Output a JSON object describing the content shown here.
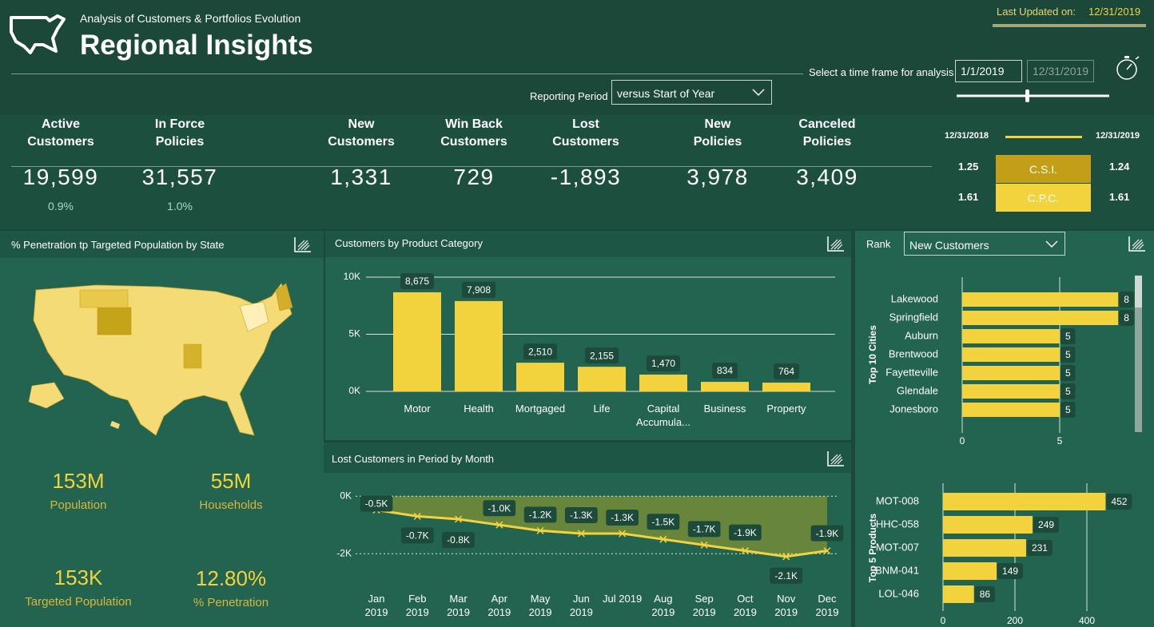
{
  "header": {
    "subtitle": "Analysis of Customers & Portfolios Evolution",
    "title": "Regional Insights",
    "last_updated_label": "Last Updated on:",
    "last_updated": "12/31/2019",
    "reporting_label": "Reporting Period",
    "reporting_period": "versus Start of Year",
    "timeframe_label": "Select a time frame for analysis",
    "start_date": "1/1/2019",
    "end_date": "12/31/2019"
  },
  "kpis": [
    {
      "label": "Active Customers",
      "value": "19,599",
      "change": "0.9%"
    },
    {
      "label": "In Force Policies",
      "value": "31,557",
      "change": "1.0%"
    },
    {
      "label": "New Customers",
      "value": "1,331"
    },
    {
      "label": "Win Back Customers",
      "value": "729"
    },
    {
      "label": "Lost Customers",
      "value": "-1,893"
    },
    {
      "label": "New Policies",
      "value": "3,978"
    },
    {
      "label": "Canceled Policies",
      "value": "3,409"
    }
  ],
  "indices": {
    "start_date": "12/31/2018",
    "end_date": "12/31/2019",
    "rows": [
      {
        "name": "C.S.I.",
        "start": "1.25",
        "end": "1.24"
      },
      {
        "name": "C.P.C.",
        "start": "1.61",
        "end": "1.61"
      }
    ]
  },
  "map_panel": {
    "title": "% Penetration tp Targeted Population by State",
    "stats": [
      {
        "value": "153M",
        "label": "Population"
      },
      {
        "value": "55M",
        "label": "Households"
      },
      {
        "value": "153K",
        "label": "Targeted Population"
      },
      {
        "value": "12.80%",
        "label": "% Penetration"
      }
    ]
  },
  "rank_panel": {
    "label": "Rank",
    "selected": "New Customers"
  },
  "chart_data": [
    {
      "type": "bar",
      "title": "Customers by Product Category",
      "color": "#f2d33d",
      "categories": [
        "Motor",
        "Health",
        "Mortgaged",
        "Life",
        "Capital Accumula...",
        "Business",
        "Property"
      ],
      "values": [
        8675,
        7908,
        2510,
        2155,
        1470,
        834,
        764
      ],
      "value_labels": [
        "8,675",
        "7,908",
        "2,510",
        "2,155",
        "1,470",
        "834",
        "764"
      ],
      "ylim": [
        0,
        10000
      ],
      "yticks": [
        {
          "value": 0,
          "label": "0K"
        },
        {
          "value": 5000,
          "label": "5K"
        },
        {
          "value": 10000,
          "label": "10K"
        }
      ],
      "grid": true
    },
    {
      "type": "line",
      "title": "Lost Customers in Period by Month",
      "color": "#f2d33d",
      "area_color": "#6f8a3a",
      "categories": [
        "Jan 2019",
        "Feb 2019",
        "Mar 2019",
        "Apr 2019",
        "May 2019",
        "Jun 2019",
        "Jul 2019",
        "Aug 2019",
        "Sep 2019",
        "Oct 2019",
        "Nov 2019",
        "Dec 2019"
      ],
      "values": [
        -480,
        -700,
        -800,
        -1000,
        -1200,
        -1300,
        -1300,
        -1500,
        -1700,
        -1900,
        -2100,
        -1900
      ],
      "value_labels": [
        "-0.5K",
        "-0.7K",
        "-0.8K",
        "-1.0K",
        "-1.2K",
        "-1.3K",
        "-1.3K",
        "-1.5K",
        "-1.7K",
        "-1.9K",
        "-2.1K",
        "-1.9K"
      ],
      "ylim": [
        -2200,
        250
      ],
      "yticks": [
        {
          "value": 0,
          "label": "0K"
        },
        {
          "value": -2000,
          "label": "-2K"
        }
      ],
      "grid": true
    },
    {
      "type": "hbar",
      "axis_title": "Top 10 Cities",
      "color": "#f2d33d",
      "categories": [
        "Lakewood",
        "Springfield",
        "Auburn",
        "Brentwood",
        "Fayetteville",
        "Glendale",
        "Jonesboro"
      ],
      "values": [
        8,
        8,
        5,
        5,
        5,
        5,
        5
      ],
      "xlim": [
        0,
        9
      ],
      "xticks": [
        0,
        5
      ],
      "grid": true
    },
    {
      "type": "hbar",
      "axis_title": "Top 5 Products",
      "color": "#f2d33d",
      "categories": [
        "MOT-008",
        "HHC-058",
        "MOT-007",
        "BNM-041",
        "LOL-046"
      ],
      "values": [
        452,
        249,
        231,
        149,
        86
      ],
      "xlim": [
        0,
        500
      ],
      "xticks": [
        0,
        200,
        400
      ],
      "grid": true
    }
  ]
}
